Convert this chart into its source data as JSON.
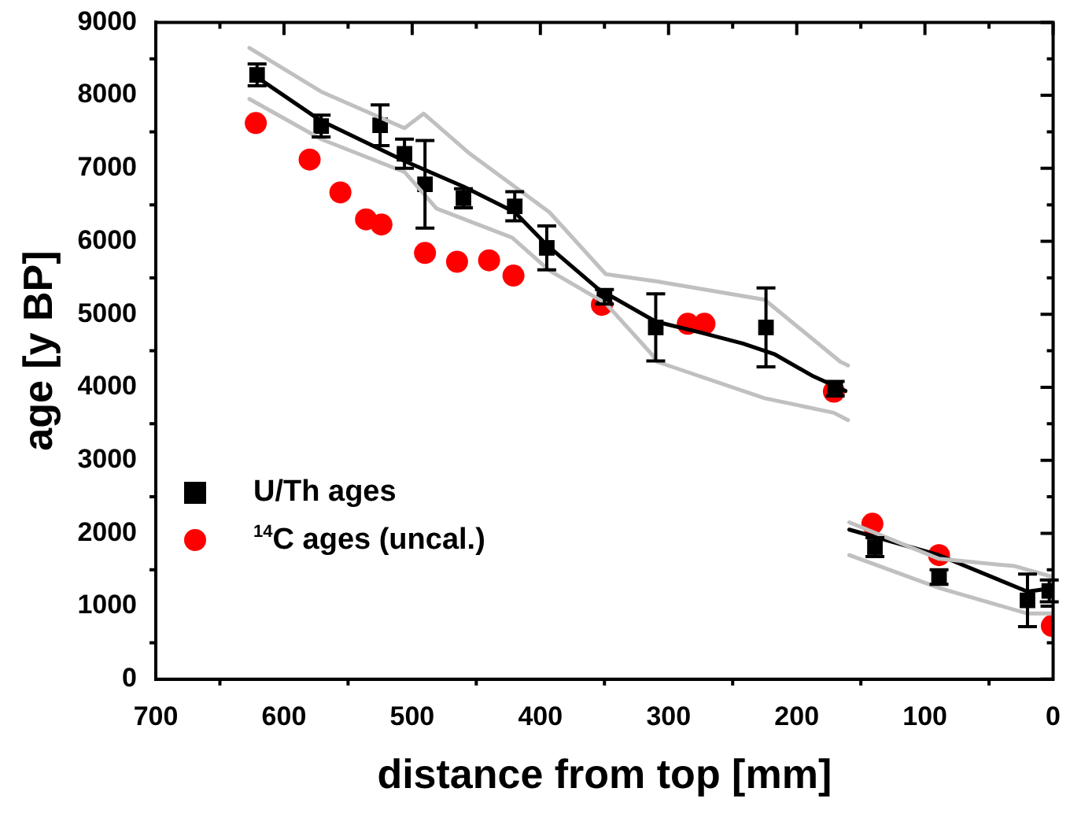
{
  "chart_data": {
    "type": "scatter",
    "xlabel": "distance from top [mm]",
    "ylabel": "age [y BP]",
    "xlim": [
      700,
      0
    ],
    "xticks": [
      700,
      600,
      500,
      400,
      300,
      200,
      100,
      0
    ],
    "ylim": [
      0,
      9000
    ],
    "yticks": [
      0,
      1000,
      2000,
      3000,
      4000,
      5000,
      6000,
      7000,
      8000,
      9000
    ],
    "grid": false,
    "legend": "left",
    "series": [
      {
        "type": "line",
        "color": "#c0c0c0",
        "marker": "none",
        "x": [
          627,
          571,
          506,
          491,
          455,
          393,
          349,
          309,
          225,
          166,
          160
        ],
        "values": [
          8650,
          8050,
          7550,
          7750,
          7200,
          6400,
          5550,
          5450,
          5200,
          4350,
          4300
        ]
      },
      {
        "type": "line",
        "color": "#c0c0c0",
        "marker": "none",
        "x": [
          159,
          89,
          30,
          0
        ],
        "values": [
          2150,
          1650,
          1550,
          1400
        ]
      },
      {
        "type": "line",
        "color": "#c0c0c0",
        "marker": "none",
        "x": [
          627,
          571,
          506,
          481,
          422,
          393,
          349,
          313,
          309,
          225,
          171,
          160
        ],
        "values": [
          7950,
          7400,
          6950,
          6450,
          6050,
          5600,
          5150,
          4450,
          4350,
          3850,
          3650,
          3550
        ]
      },
      {
        "type": "line",
        "color": "#c0c0c0",
        "marker": "none",
        "x": [
          159,
          89,
          20,
          0
        ],
        "values": [
          1700,
          1250,
          900,
          900
        ]
      },
      {
        "type": "line",
        "color": "#000000",
        "marker": "none",
        "x": [
          617,
          571,
          506,
          460,
          420,
          395,
          355,
          310,
          275,
          242,
          217,
          187,
          162
        ],
        "values": [
          8200,
          7650,
          7100,
          6750,
          6400,
          5950,
          5350,
          4900,
          4750,
          4600,
          4450,
          4150,
          3950
        ]
      },
      {
        "type": "line",
        "color": "#000000",
        "marker": "none",
        "x": [
          159,
          89,
          20,
          0
        ],
        "values": [
          2050,
          1700,
          1200,
          1250
        ]
      },
      {
        "type": "scatter",
        "name": "U/Th ages",
        "color": "#000000",
        "marker": "square",
        "x": [
          621,
          571,
          525,
          506,
          490,
          460,
          420,
          395,
          350,
          310,
          224,
          170,
          139,
          89,
          20,
          3
        ],
        "values": [
          8280,
          7580,
          7590,
          7200,
          6780,
          6590,
          6480,
          5910,
          5240,
          4820,
          4820,
          3980,
          1810,
          1400,
          1080,
          1210
        ],
        "errors": [
          150,
          150,
          280,
          200,
          600,
          130,
          200,
          300,
          100,
          460,
          540,
          100,
          130,
          100,
          360,
          150
        ]
      },
      {
        "type": "scatter",
        "name": "$^{14}$C ages (uncal.)",
        "color": "#ff0000",
        "marker": "circle",
        "x": [
          622,
          580,
          556,
          536,
          524,
          490,
          465,
          440,
          421,
          352,
          285,
          272,
          171,
          141,
          89,
          1
        ],
        "values": [
          7620,
          7120,
          6670,
          6300,
          6230,
          5840,
          5720,
          5740,
          5530,
          5130,
          4870,
          4870,
          3940,
          2130,
          1700,
          730
        ]
      }
    ]
  }
}
